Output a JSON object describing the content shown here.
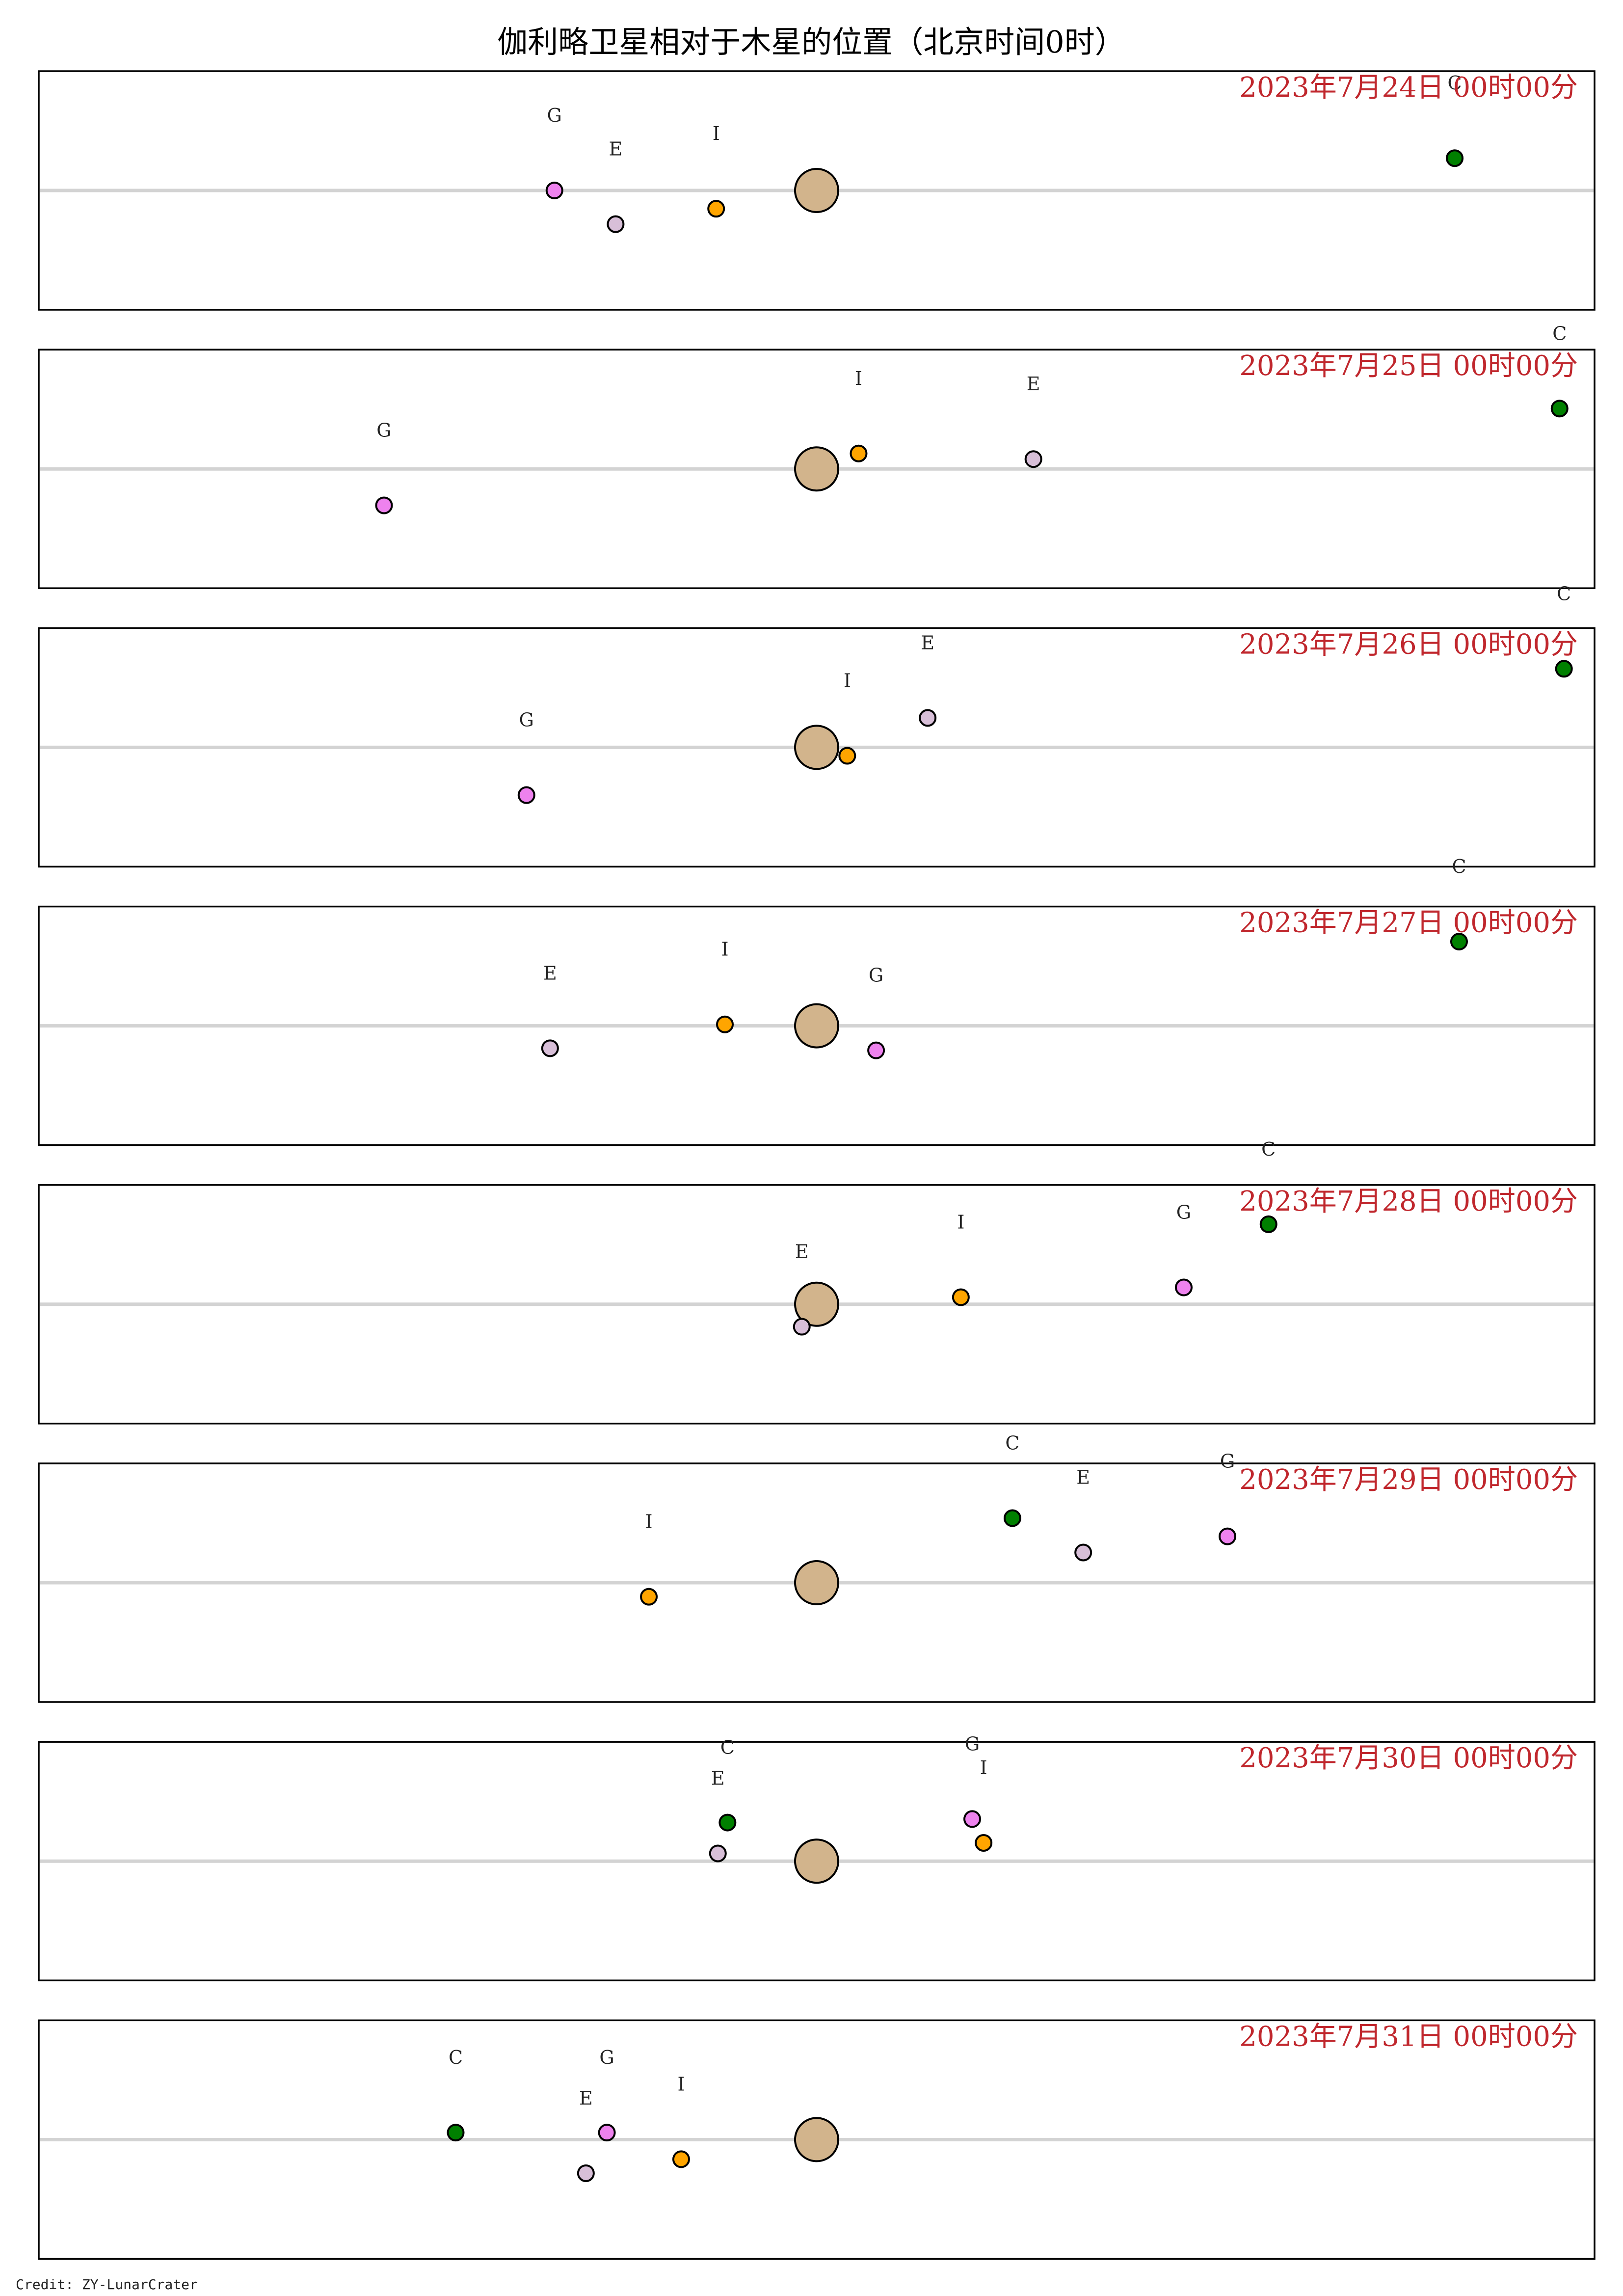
{
  "title": "伽利略卫星相对于木星的位置（北京时间0时）",
  "credit": "Credit: ZY-LunarCrater",
  "colors": {
    "jupiter": "#d2b48c",
    "io": "#ffa500",
    "europa": "#d8bfd8",
    "ganymede": "#ee82ee",
    "callisto": "#008000",
    "baseline": "#d3d3d3",
    "date_text": "#c0272d"
  },
  "chart_data": {
    "type": "scatter",
    "xlim": [
      -8.9,
      8.9
    ],
    "ylim": [
      -1.7,
      1.7
    ],
    "jupiter": {
      "x": 0,
      "y": 0
    },
    "panels": [
      {
        "date": "2023年7月24日  00时00分",
        "moons": [
          {
            "id": "G",
            "x": -3.0,
            "y": 0.0
          },
          {
            "id": "E",
            "x": -2.3,
            "y": -0.48
          },
          {
            "id": "I",
            "x": -1.15,
            "y": -0.26
          },
          {
            "id": "C",
            "x": 7.3,
            "y": 0.46
          }
        ]
      },
      {
        "date": "2023年7月25日  00时00分",
        "moons": [
          {
            "id": "G",
            "x": -4.95,
            "y": -0.52
          },
          {
            "id": "I",
            "x": 0.48,
            "y": 0.22
          },
          {
            "id": "E",
            "x": 2.48,
            "y": 0.14
          },
          {
            "id": "C",
            "x": 8.5,
            "y": 0.86
          }
        ]
      },
      {
        "date": "2023年7月26日  00时00分",
        "moons": [
          {
            "id": "G",
            "x": -3.32,
            "y": -0.68
          },
          {
            "id": "I",
            "x": 0.35,
            "y": -0.12
          },
          {
            "id": "E",
            "x": 1.27,
            "y": 0.42
          },
          {
            "id": "C",
            "x": 8.55,
            "y": 1.12
          }
        ]
      },
      {
        "date": "2023年7月27日  00时00分",
        "moons": [
          {
            "id": "E",
            "x": -3.05,
            "y": -0.32
          },
          {
            "id": "I",
            "x": -1.05,
            "y": 0.02
          },
          {
            "id": "G",
            "x": 0.68,
            "y": -0.35
          },
          {
            "id": "C",
            "x": 7.35,
            "y": 1.2
          }
        ]
      },
      {
        "date": "2023年7月28日  00时00分",
        "moons": [
          {
            "id": "E",
            "x": -0.17,
            "y": -0.32
          },
          {
            "id": "I",
            "x": 1.65,
            "y": 0.1
          },
          {
            "id": "G",
            "x": 4.2,
            "y": 0.24
          },
          {
            "id": "C",
            "x": 5.17,
            "y": 1.14
          }
        ]
      },
      {
        "date": "2023年7月29日  00时00分",
        "moons": [
          {
            "id": "I",
            "x": -1.92,
            "y": -0.2
          },
          {
            "id": "C",
            "x": 2.24,
            "y": 0.92
          },
          {
            "id": "E",
            "x": 3.05,
            "y": 0.43
          },
          {
            "id": "G",
            "x": 4.7,
            "y": 0.66
          }
        ]
      },
      {
        "date": "2023年7月30日  00时00分",
        "moons": [
          {
            "id": "C",
            "x": -1.02,
            "y": 0.55
          },
          {
            "id": "E",
            "x": -1.13,
            "y": 0.11
          },
          {
            "id": "G",
            "x": 1.78,
            "y": 0.6
          },
          {
            "id": "I",
            "x": 1.91,
            "y": 0.26
          }
        ]
      },
      {
        "date": "2023年7月31日  00时00分",
        "moons": [
          {
            "id": "C",
            "x": -4.13,
            "y": 0.1
          },
          {
            "id": "G",
            "x": -2.4,
            "y": 0.1
          },
          {
            "id": "E",
            "x": -2.64,
            "y": -0.48
          },
          {
            "id": "I",
            "x": -1.55,
            "y": -0.28
          }
        ]
      }
    ]
  }
}
